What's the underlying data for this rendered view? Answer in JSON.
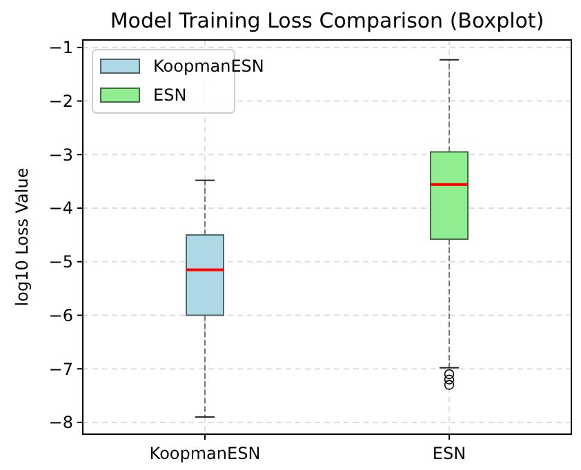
{
  "chart_data": {
    "type": "box",
    "title": "Model Training Loss Comparison (Boxplot)",
    "ylabel": "log10 Loss Value",
    "categories": [
      "KoopmanESN",
      "ESN"
    ],
    "series": [
      {
        "name": "KoopmanESN",
        "color": "#add8e6",
        "boxes": [
          {
            "low": -7.9,
            "q1": -6.0,
            "median": -5.15,
            "q3": -4.5,
            "high": -3.48
          },
          null
        ]
      },
      {
        "name": "ESN",
        "color": "#90ee90",
        "boxes": [
          null,
          {
            "low": -6.98,
            "q1": -4.58,
            "median": -3.56,
            "q3": -2.95,
            "high": -1.23,
            "outliers": [
              -7.1,
              -7.2,
              -7.3
            ]
          }
        ]
      }
    ],
    "ylim": [
      -8.22,
      -0.86
    ],
    "yticks": [
      -8,
      -7,
      -6,
      -5,
      -4,
      -3,
      -2,
      -1
    ],
    "grid": true,
    "legend": "top left"
  }
}
